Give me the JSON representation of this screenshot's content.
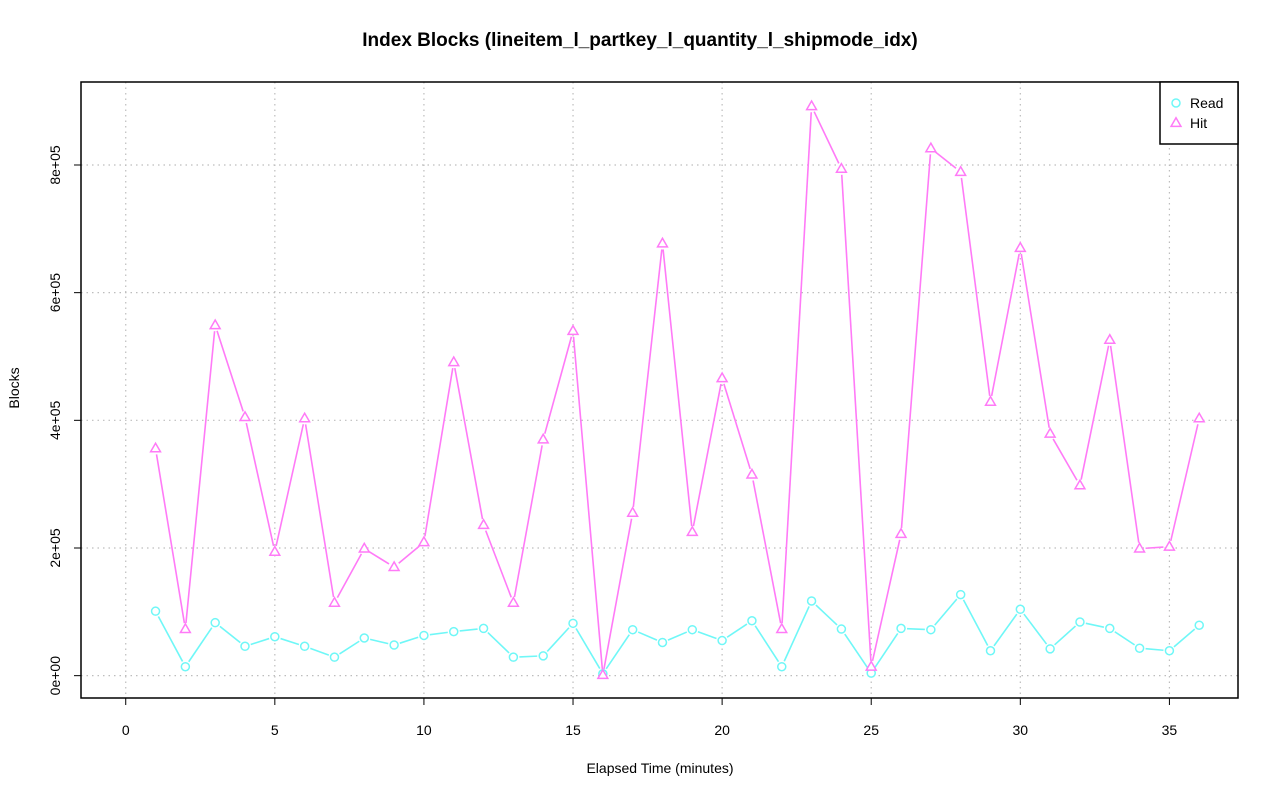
{
  "chart_data": {
    "type": "line",
    "title": "Index Blocks (lineitem_l_partkey_l_quantity_l_shipmode_idx)",
    "xlabel": "Elapsed Time (minutes)",
    "ylabel": "Blocks",
    "xlim": [
      -1.5,
      37.3
    ],
    "ylim": [
      -35000,
      930000
    ],
    "x_ticks": [
      0,
      5,
      10,
      15,
      20,
      25,
      30,
      35
    ],
    "y_ticks": [
      0,
      200000,
      400000,
      600000,
      800000
    ],
    "y_tick_labels": [
      "0e+00",
      "2e+05",
      "4e+05",
      "6e+05",
      "8e+05"
    ],
    "grid": true,
    "legend_position": "top-right",
    "x": [
      1,
      2,
      3,
      4,
      5,
      6,
      7,
      8,
      9,
      10,
      11,
      12,
      13,
      14,
      15,
      16,
      17,
      18,
      19,
      20,
      21,
      22,
      23,
      24,
      25,
      26,
      27,
      28,
      29,
      30,
      31,
      32,
      33,
      34,
      35,
      36
    ],
    "series": [
      {
        "name": "Read",
        "color": "#6ff7f7",
        "marker": "circle",
        "values": [
          101000,
          14000,
          83000,
          46000,
          61000,
          46000,
          29000,
          59000,
          48000,
          63000,
          69000,
          74000,
          29000,
          31000,
          82000,
          3000,
          72000,
          52000,
          72000,
          55000,
          86000,
          14000,
          117000,
          73000,
          4000,
          74000,
          72000,
          127000,
          39000,
          104000,
          42000,
          84000,
          74000,
          43000,
          39000,
          79000
        ]
      },
      {
        "name": "Hit",
        "color": "#ff7af7",
        "marker": "triangle",
        "values": [
          356000,
          73000,
          549000,
          405000,
          194000,
          403000,
          114000,
          199000,
          170000,
          209000,
          491000,
          236000,
          114000,
          370000,
          540000,
          1000,
          255000,
          677000,
          225000,
          466000,
          315000,
          73000,
          892000,
          794000,
          14000,
          222000,
          826000,
          789000,
          429000,
          670000,
          379000,
          298000,
          526000,
          199000,
          202000,
          403000
        ]
      }
    ]
  }
}
